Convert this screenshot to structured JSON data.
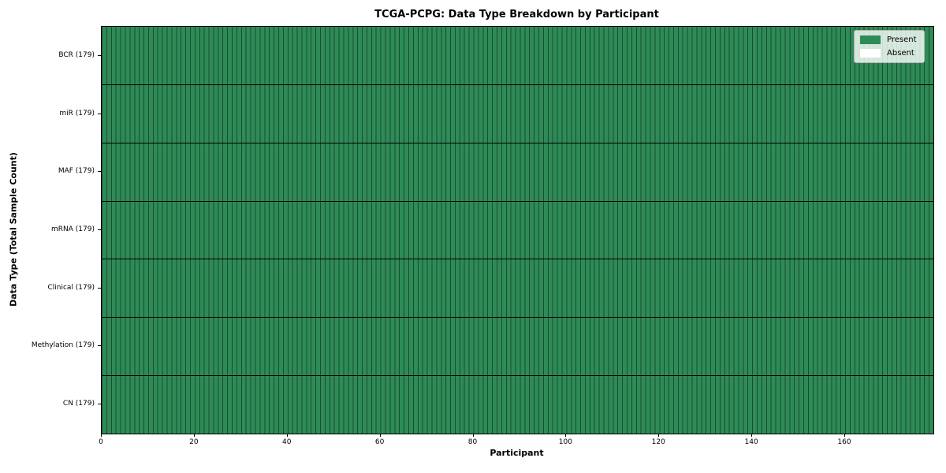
{
  "chart_data": {
    "type": "heatmap",
    "title": "TCGA-PCPG: Data Type Breakdown by Participant",
    "xlabel": "Participant",
    "ylabel": "Data Type (Total Sample Count)",
    "n_participants": 179,
    "x_range": [
      0,
      179
    ],
    "x_ticks": [
      0,
      20,
      40,
      60,
      80,
      100,
      120,
      140,
      160
    ],
    "rows": [
      {
        "label": "BCR",
        "total_samples": 179,
        "tick_label": "BCR (179)",
        "present_count": 179,
        "absent_count": 0
      },
      {
        "label": "miR",
        "total_samples": 179,
        "tick_label": "miR (179)",
        "present_count": 179,
        "absent_count": 0
      },
      {
        "label": "MAF",
        "total_samples": 179,
        "tick_label": "MAF (179)",
        "present_count": 179,
        "absent_count": 0
      },
      {
        "label": "mRNA",
        "total_samples": 179,
        "tick_label": "mRNA (179)",
        "present_count": 179,
        "absent_count": 0
      },
      {
        "label": "Clinical",
        "total_samples": 179,
        "tick_label": "Clinical (179)",
        "present_count": 179,
        "absent_count": 0
      },
      {
        "label": "Methylation",
        "total_samples": 179,
        "tick_label": "Methylation (179)",
        "present_count": 179,
        "absent_count": 0
      },
      {
        "label": "CN",
        "total_samples": 179,
        "tick_label": "CN (179)",
        "present_count": 179,
        "absent_count": 0
      }
    ],
    "cell_values_note": "every cell is Present (value 1) for all 179 participants in all 7 rows",
    "legend": [
      {
        "label": "Present",
        "color": "#2e8b57"
      },
      {
        "label": "Absent",
        "color": "#ffffff"
      }
    ],
    "legend_position": "upper right",
    "grid": "cell edges visible",
    "colors": {
      "present": "#2e8b57",
      "absent": "#ffffff",
      "cell_edge": "rgba(0,0,0,0.45)",
      "row_separator": "#000000",
      "axis_spine": "#000000"
    }
  }
}
